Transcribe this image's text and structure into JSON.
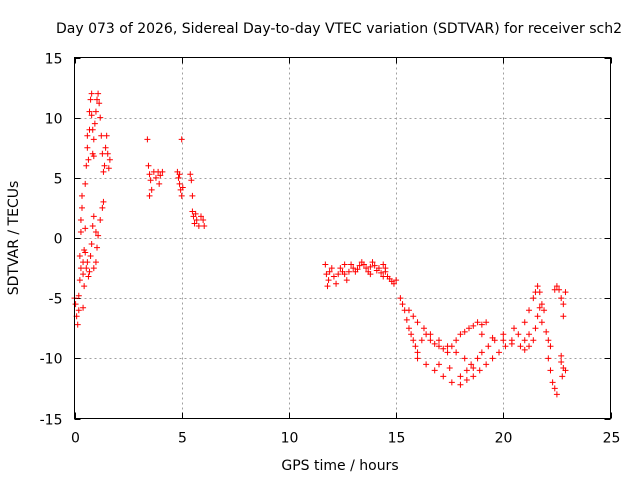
{
  "chart_data": {
    "type": "scatter",
    "title": "Day 073 of 2026, Sidereal Day-to-day VTEC variation (SDTVAR) for receiver sch2",
    "xlabel": "GPS time / hours",
    "ylabel": "SDTVAR / TECUs",
    "xlim": [
      0,
      25
    ],
    "ylim": [
      -15,
      15
    ],
    "xticks": [
      0,
      5,
      10,
      15,
      20,
      25
    ],
    "yticks": [
      -15,
      -10,
      -5,
      0,
      5,
      10,
      15
    ],
    "xtick_labels": [
      "0",
      "5",
      "10",
      "15",
      "20",
      "25"
    ],
    "ytick_labels": [
      "-15",
      "-10",
      "-5",
      "0",
      "5",
      "10",
      "15"
    ],
    "grid": true,
    "marker": "+",
    "color": "#ff0000",
    "series": [
      {
        "name": "SDTVAR",
        "points": [
          [
            0.0,
            -5.0
          ],
          [
            0.05,
            -5.5
          ],
          [
            0.1,
            -6.5
          ],
          [
            0.15,
            -7.2
          ],
          [
            0.2,
            -6.0
          ],
          [
            0.2,
            -4.8
          ],
          [
            0.25,
            -3.5
          ],
          [
            0.25,
            -1.5
          ],
          [
            0.3,
            0.5
          ],
          [
            0.3,
            1.5
          ],
          [
            0.35,
            2.5
          ],
          [
            0.35,
            3.5
          ],
          [
            0.3,
            -2.5
          ],
          [
            0.4,
            -3.0
          ],
          [
            0.4,
            -5.8
          ],
          [
            0.45,
            -4.0
          ],
          [
            0.45,
            -1.0
          ],
          [
            0.5,
            0.8
          ],
          [
            0.5,
            4.5
          ],
          [
            0.55,
            6.0
          ],
          [
            0.6,
            7.5
          ],
          [
            0.6,
            8.5
          ],
          [
            0.65,
            6.5
          ],
          [
            0.7,
            9.0
          ],
          [
            0.7,
            10.5
          ],
          [
            0.75,
            11.5
          ],
          [
            0.8,
            12.0
          ],
          [
            0.8,
            10.2
          ],
          [
            0.85,
            9.0
          ],
          [
            0.85,
            7.0
          ],
          [
            0.9,
            6.8
          ],
          [
            0.9,
            8.2
          ],
          [
            0.95,
            9.5
          ],
          [
            1.0,
            10.5
          ],
          [
            1.05,
            11.5
          ],
          [
            1.1,
            12.0
          ],
          [
            1.15,
            11.2
          ],
          [
            1.2,
            10.0
          ],
          [
            1.25,
            8.5
          ],
          [
            1.3,
            7.0
          ],
          [
            1.35,
            5.5
          ],
          [
            1.4,
            6.0
          ],
          [
            1.45,
            7.5
          ],
          [
            1.5,
            8.5
          ],
          [
            1.55,
            7.0
          ],
          [
            1.6,
            5.8
          ],
          [
            1.65,
            6.5
          ],
          [
            0.6,
            -2.0
          ],
          [
            0.7,
            -2.8
          ],
          [
            0.75,
            -1.5
          ],
          [
            0.8,
            -0.5
          ],
          [
            0.85,
            1.0
          ],
          [
            0.9,
            1.8
          ],
          [
            1.0,
            0.5
          ],
          [
            1.05,
            -0.8
          ],
          [
            1.1,
            0.2
          ],
          [
            1.2,
            1.5
          ],
          [
            1.3,
            2.5
          ],
          [
            1.35,
            3.0
          ],
          [
            0.55,
            -2.5
          ],
          [
            0.65,
            -3.2
          ],
          [
            0.9,
            -2.5
          ],
          [
            1.0,
            -2.0
          ],
          [
            0.4,
            -2.0
          ],
          [
            0.5,
            -1.2
          ],
          [
            3.4,
            8.2
          ],
          [
            3.45,
            6.0
          ],
          [
            3.5,
            5.3
          ],
          [
            3.55,
            4.8
          ],
          [
            3.5,
            3.5
          ],
          [
            3.6,
            4.0
          ],
          [
            3.7,
            5.5
          ],
          [
            3.8,
            5.0
          ],
          [
            3.9,
            5.5
          ],
          [
            3.95,
            4.5
          ],
          [
            4.0,
            5.2
          ],
          [
            4.1,
            5.5
          ],
          [
            4.8,
            5.5
          ],
          [
            4.85,
            5.0
          ],
          [
            4.9,
            4.5
          ],
          [
            4.95,
            4.0
          ],
          [
            5.0,
            3.5
          ],
          [
            4.9,
            5.3
          ],
          [
            5.05,
            4.2
          ],
          [
            5.0,
            8.2
          ],
          [
            5.4,
            5.3
          ],
          [
            5.45,
            4.8
          ],
          [
            5.5,
            3.5
          ],
          [
            5.5,
            2.2
          ],
          [
            5.55,
            1.8
          ],
          [
            5.6,
            1.2
          ],
          [
            5.7,
            1.5
          ],
          [
            5.8,
            1.0
          ],
          [
            5.9,
            1.8
          ],
          [
            6.0,
            1.5
          ],
          [
            6.05,
            1.0
          ],
          [
            5.65,
            2.0
          ],
          [
            11.7,
            -2.2
          ],
          [
            11.75,
            -3.0
          ],
          [
            11.8,
            -4.0
          ],
          [
            11.85,
            -3.5
          ],
          [
            11.9,
            -2.8
          ],
          [
            12.0,
            -2.5
          ],
          [
            12.1,
            -3.2
          ],
          [
            12.2,
            -3.8
          ],
          [
            12.3,
            -3.0
          ],
          [
            12.4,
            -2.5
          ],
          [
            12.5,
            -2.8
          ],
          [
            12.6,
            -3.0
          ],
          [
            12.7,
            -3.5
          ],
          [
            12.8,
            -2.8
          ],
          [
            12.9,
            -2.2
          ],
          [
            13.0,
            -2.5
          ],
          [
            13.1,
            -2.8
          ],
          [
            13.2,
            -2.6
          ],
          [
            13.3,
            -2.3
          ],
          [
            13.4,
            -2.0
          ],
          [
            13.5,
            -2.2
          ],
          [
            13.6,
            -2.5
          ],
          [
            13.7,
            -2.8
          ],
          [
            13.8,
            -2.4
          ],
          [
            13.9,
            -2.0
          ],
          [
            14.0,
            -2.3
          ],
          [
            14.1,
            -2.7
          ],
          [
            14.2,
            -2.5
          ],
          [
            14.3,
            -2.9
          ],
          [
            14.4,
            -3.2
          ],
          [
            14.5,
            -2.8
          ],
          [
            14.6,
            -3.2
          ],
          [
            14.7,
            -3.4
          ],
          [
            14.8,
            -3.6
          ],
          [
            14.9,
            -3.8
          ],
          [
            15.0,
            -3.5
          ],
          [
            14.4,
            -2.2
          ],
          [
            14.5,
            -2.5
          ],
          [
            13.8,
            -3.0
          ],
          [
            12.6,
            -2.2
          ],
          [
            15.2,
            -5.0
          ],
          [
            15.3,
            -5.5
          ],
          [
            15.4,
            -6.0
          ],
          [
            15.5,
            -6.8
          ],
          [
            15.6,
            -7.5
          ],
          [
            15.7,
            -8.0
          ],
          [
            15.8,
            -8.5
          ],
          [
            15.9,
            -9.0
          ],
          [
            16.0,
            -9.5
          ],
          [
            16.2,
            -8.5
          ],
          [
            16.4,
            -8.0
          ],
          [
            16.6,
            -8.5
          ],
          [
            16.8,
            -8.8
          ],
          [
            17.0,
            -9.0
          ],
          [
            17.2,
            -9.2
          ],
          [
            17.4,
            -9.5
          ],
          [
            17.6,
            -9.0
          ],
          [
            17.8,
            -8.5
          ],
          [
            18.0,
            -8.0
          ],
          [
            18.2,
            -7.8
          ],
          [
            18.4,
            -7.5
          ],
          [
            18.6,
            -7.3
          ],
          [
            18.8,
            -7.0
          ],
          [
            19.0,
            -7.2
          ],
          [
            19.2,
            -7.0
          ],
          [
            15.6,
            -6.0
          ],
          [
            15.8,
            -6.5
          ],
          [
            16.0,
            -7.0
          ],
          [
            16.3,
            -7.5
          ],
          [
            16.6,
            -8.0
          ],
          [
            17.0,
            -8.5
          ],
          [
            17.4,
            -9.0
          ],
          [
            17.8,
            -9.5
          ],
          [
            18.2,
            -10.0
          ],
          [
            18.5,
            -10.5
          ],
          [
            18.8,
            -10.0
          ],
          [
            19.0,
            -9.5
          ],
          [
            19.3,
            -9.0
          ],
          [
            19.6,
            -8.5
          ],
          [
            20.0,
            -8.5
          ],
          [
            20.4,
            -8.8
          ],
          [
            20.8,
            -9.0
          ],
          [
            21.0,
            -9.3
          ],
          [
            21.2,
            -9.0
          ],
          [
            21.4,
            -8.5
          ],
          [
            21.5,
            -7.5
          ],
          [
            21.6,
            -6.5
          ],
          [
            21.7,
            -5.8
          ],
          [
            21.8,
            -5.5
          ],
          [
            21.9,
            -6.0
          ],
          [
            16.0,
            -10.0
          ],
          [
            16.4,
            -10.5
          ],
          [
            16.8,
            -11.0
          ],
          [
            17.2,
            -11.5
          ],
          [
            17.6,
            -12.0
          ],
          [
            18.0,
            -11.5
          ],
          [
            18.3,
            -11.0
          ],
          [
            18.6,
            -10.8
          ],
          [
            17.0,
            -10.5
          ],
          [
            17.5,
            -10.8
          ],
          [
            18.0,
            -12.2
          ],
          [
            18.3,
            -11.8
          ],
          [
            18.6,
            -11.5
          ],
          [
            18.9,
            -11.0
          ],
          [
            19.2,
            -10.5
          ],
          [
            19.5,
            -10.0
          ],
          [
            19.8,
            -9.5
          ],
          [
            20.1,
            -9.0
          ],
          [
            20.4,
            -8.5
          ],
          [
            20.7,
            -8.0
          ],
          [
            21.0,
            -7.0
          ],
          [
            21.2,
            -6.0
          ],
          [
            21.4,
            -5.0
          ],
          [
            21.5,
            -4.5
          ],
          [
            21.6,
            -4.0
          ],
          [
            21.7,
            -4.5
          ],
          [
            19.0,
            -8.0
          ],
          [
            19.5,
            -8.3
          ],
          [
            20.0,
            -8.0
          ],
          [
            20.5,
            -7.5
          ],
          [
            21.0,
            -8.5
          ],
          [
            21.2,
            -8.0
          ],
          [
            21.8,
            -7.0
          ],
          [
            22.0,
            -7.8
          ],
          [
            22.1,
            -8.5
          ],
          [
            22.2,
            -9.0
          ],
          [
            22.1,
            -10.0
          ],
          [
            22.2,
            -11.0
          ],
          [
            22.3,
            -12.0
          ],
          [
            22.4,
            -12.5
          ],
          [
            22.5,
            -13.0
          ],
          [
            22.4,
            -4.3
          ],
          [
            22.5,
            -4.0
          ],
          [
            22.6,
            -4.3
          ],
          [
            22.7,
            -5.0
          ],
          [
            22.8,
            -5.5
          ],
          [
            22.7,
            -10.3
          ],
          [
            22.8,
            -10.8
          ],
          [
            22.9,
            -11.0
          ],
          [
            22.7,
            -9.8
          ],
          [
            22.8,
            -6.5
          ],
          [
            22.9,
            -4.5
          ],
          [
            22.75,
            -11.5
          ]
        ]
      }
    ]
  }
}
